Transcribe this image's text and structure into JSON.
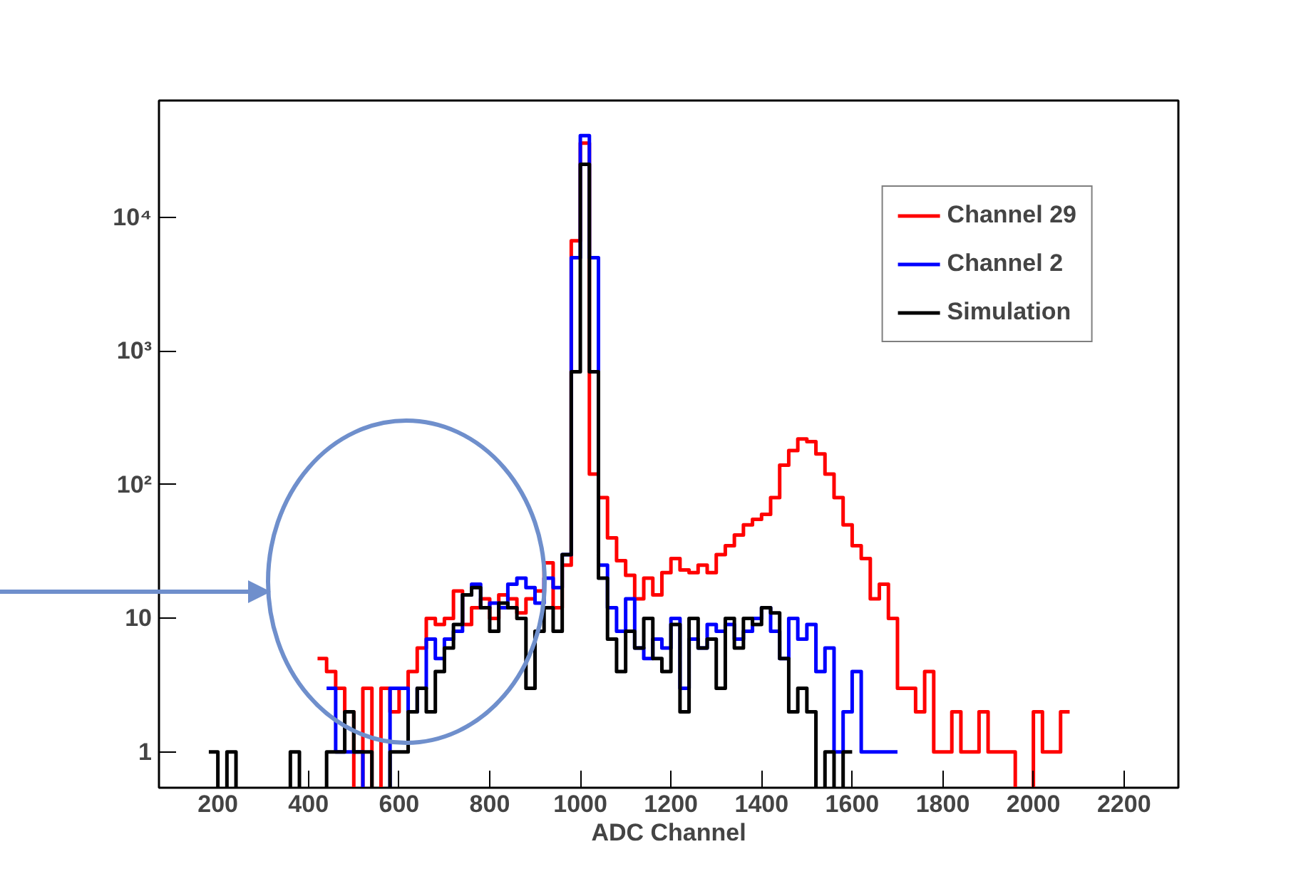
{
  "chart_data": {
    "type": "step",
    "xlabel": "ADC Channel",
    "log": "y",
    "xlim": [
      70,
      2320
    ],
    "ylim": [
      0.54,
      75000
    ],
    "xticks": [
      200,
      400,
      600,
      800,
      1000,
      1200,
      1400,
      1600,
      1800,
      2000,
      2200
    ],
    "yticks": [
      {
        "value": 1,
        "label": "1"
      },
      {
        "value": 10,
        "label": "10"
      },
      {
        "value": 100,
        "label": "10²"
      },
      {
        "value": 1000,
        "label": "10³"
      },
      {
        "value": 10000,
        "label": "10⁴"
      }
    ],
    "grid": false,
    "legend": "top right",
    "series": [
      {
        "name": "Channel 29",
        "color": "#ff0000",
        "x": [
          430,
          450,
          470,
          490,
          510,
          530,
          550,
          570,
          590,
          610,
          630,
          650,
          670,
          690,
          710,
          730,
          750,
          770,
          790,
          810,
          830,
          850,
          870,
          890,
          910,
          930,
          950,
          970,
          990,
          1010,
          1030,
          1050,
          1070,
          1090,
          1110,
          1130,
          1150,
          1170,
          1190,
          1210,
          1230,
          1250,
          1270,
          1290,
          1310,
          1330,
          1350,
          1370,
          1390,
          1410,
          1430,
          1450,
          1470,
          1490,
          1510,
          1530,
          1550,
          1570,
          1590,
          1610,
          1630,
          1650,
          1670,
          1690,
          1710,
          1730,
          1750,
          1770,
          1790,
          1810,
          1830,
          1850,
          1870,
          1890,
          1910,
          1930,
          1950,
          1970,
          1990,
          2010,
          2030,
          2050,
          2070
        ],
        "values": [
          5,
          4,
          3,
          2,
          null,
          3,
          null,
          3,
          2,
          3,
          4,
          6,
          10,
          9,
          10,
          16,
          9,
          12,
          14,
          10,
          15,
          14,
          11,
          14,
          16,
          26,
          12,
          25,
          6700,
          36000,
          120,
          80,
          40,
          27,
          21,
          14,
          20,
          15,
          22,
          28,
          23,
          22,
          25,
          22,
          30,
          35,
          42,
          50,
          55,
          60,
          80,
          140,
          180,
          220,
          210,
          170,
          120,
          80,
          50,
          35,
          28,
          14,
          18,
          10,
          3,
          3,
          2,
          4,
          1,
          1,
          2,
          1,
          1,
          2,
          1,
          1,
          1,
          null,
          null,
          2,
          1,
          1,
          2
        ]
      },
      {
        "name": "Channel 2",
        "color": "#0000ff",
        "x": [
          450,
          470,
          490,
          510,
          530,
          550,
          570,
          590,
          610,
          630,
          650,
          670,
          690,
          710,
          730,
          750,
          770,
          790,
          810,
          830,
          850,
          870,
          890,
          910,
          930,
          950,
          970,
          990,
          1010,
          1030,
          1050,
          1070,
          1090,
          1110,
          1130,
          1150,
          1170,
          1190,
          1210,
          1230,
          1250,
          1270,
          1290,
          1310,
          1330,
          1350,
          1370,
          1390,
          1410,
          1430,
          1450,
          1470,
          1490,
          1510,
          1530,
          1550,
          1570,
          1590,
          1610,
          1630,
          1650,
          1670,
          1690
        ],
        "values": [
          3,
          1,
          1,
          1,
          null,
          null,
          null,
          3,
          3,
          2,
          3,
          7,
          5,
          7,
          8,
          15,
          18,
          12,
          13,
          12,
          18,
          20,
          17,
          13,
          20,
          17,
          30,
          5000,
          41000,
          5000,
          25,
          12,
          8,
          14,
          6,
          5,
          7,
          6,
          10,
          3,
          7,
          6,
          9,
          8,
          9,
          7,
          8,
          10,
          12,
          8,
          5,
          10,
          7,
          9,
          4,
          6,
          1,
          2,
          4,
          1,
          1,
          1,
          1
        ]
      },
      {
        "name": "Simulation",
        "color": "#000000",
        "x": [
          190,
          210,
          230,
          250,
          270,
          290,
          310,
          330,
          350,
          370,
          390,
          410,
          430,
          450,
          470,
          490,
          510,
          530,
          550,
          570,
          590,
          610,
          630,
          650,
          670,
          690,
          710,
          730,
          750,
          770,
          790,
          810,
          830,
          850,
          870,
          890,
          910,
          930,
          950,
          970,
          990,
          1010,
          1030,
          1050,
          1070,
          1090,
          1110,
          1130,
          1150,
          1170,
          1190,
          1210,
          1230,
          1250,
          1270,
          1290,
          1310,
          1330,
          1350,
          1370,
          1390,
          1410,
          1430,
          1450,
          1470,
          1490,
          1510,
          1530,
          1550,
          1570,
          1590
        ],
        "values": [
          1,
          null,
          1,
          null,
          null,
          null,
          null,
          null,
          null,
          1,
          null,
          null,
          null,
          1,
          1,
          2,
          1,
          1,
          null,
          null,
          1,
          1,
          2,
          3,
          2,
          4,
          6,
          9,
          15,
          17,
          12,
          8,
          13,
          12,
          10,
          3,
          8,
          12,
          8,
          30,
          700,
          25000,
          700,
          20,
          7,
          4,
          8,
          6,
          10,
          5,
          4,
          9,
          2,
          10,
          6,
          7,
          3,
          10,
          6,
          10,
          9,
          12,
          11,
          5,
          2,
          3,
          2,
          null,
          1,
          null,
          1
        ]
      }
    ]
  }
}
